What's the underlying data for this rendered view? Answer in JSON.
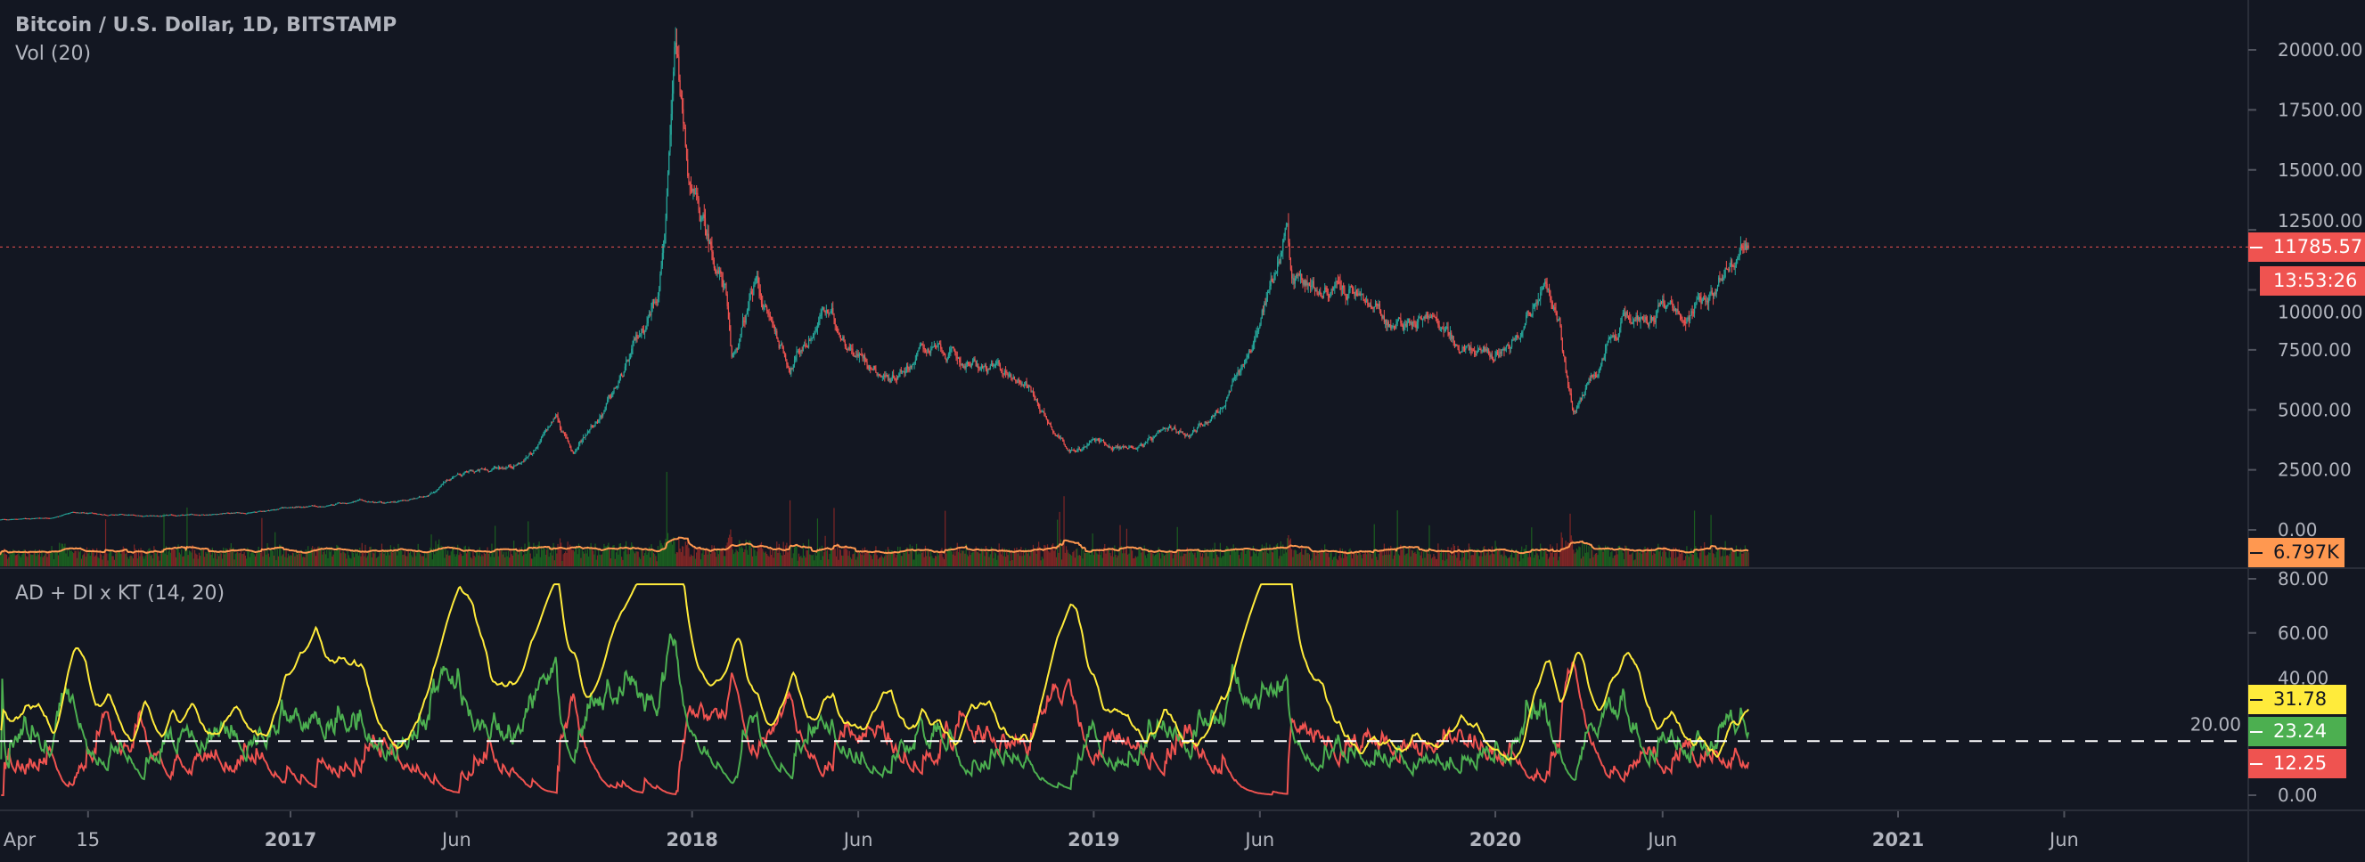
{
  "header": {
    "title": "Bitcoin / U.S. Dollar, 1D, BITSTAMP",
    "volume_label": "Vol (20)",
    "indicator_label": "AD + DI x KT (14, 20)"
  },
  "colors": {
    "background": "#131722",
    "up": "#26a69a",
    "down": "#ef5350",
    "volume_up": "#1b5e20",
    "volume_down": "#7f2626",
    "volume_ma": "#ff9850",
    "adx": "#ffeb3b",
    "di_plus": "#4caf50",
    "di_minus": "#ef5350",
    "axis_text": "#b2b5be",
    "separator": "#2a2e39"
  },
  "price_tags": {
    "last_price": "11785.57",
    "countdown": "13:53:26",
    "volume": "6.797K",
    "adx": "31.78",
    "di_plus": "23.24",
    "di_minus": "12.25"
  },
  "chart_data": [
    {
      "type": "candlestick",
      "pane": "price",
      "ylim": [
        0,
        20000
      ],
      "y_ticks": [
        "20000.00",
        "17500.00",
        "15000.00",
        "12500.00",
        "10000.00",
        "7500.00",
        "5000.00",
        "2500.00",
        "0.00"
      ],
      "y_tick_values": [
        20000,
        17500,
        15000,
        12500,
        10000,
        7500,
        5000,
        2500,
        0
      ],
      "x_range": [
        "2016-04-12",
        "2021-12-31"
      ],
      "x_ticks": [
        {
          "label": "Apr",
          "date": "2016-04-01"
        },
        {
          "label": "15",
          "date": "2016-07-01"
        },
        {
          "label": "2017",
          "date": "2017-01-01"
        },
        {
          "label": "Jun",
          "date": "2017-06-01"
        },
        {
          "label": "2018",
          "date": "2018-01-01"
        },
        {
          "label": "Jun",
          "date": "2018-06-01"
        },
        {
          "label": "2019",
          "date": "2019-01-01"
        },
        {
          "label": "Jun",
          "date": "2019-06-01"
        },
        {
          "label": "2020",
          "date": "2020-01-01"
        },
        {
          "label": "Jun",
          "date": "2020-06-01"
        },
        {
          "label": "2021",
          "date": "2021-01-01"
        },
        {
          "label": "Jun",
          "date": "2021-06-01"
        }
      ],
      "approx_close": [
        [
          "2016-04-12",
          425
        ],
        [
          "2016-05-31",
          530
        ],
        [
          "2016-06-18",
          760
        ],
        [
          "2016-06-30",
          670
        ],
        [
          "2016-07-31",
          620
        ],
        [
          "2016-08-31",
          575
        ],
        [
          "2016-09-30",
          608
        ],
        [
          "2016-10-31",
          700
        ],
        [
          "2016-11-30",
          740
        ],
        [
          "2016-12-31",
          960
        ],
        [
          "2017-01-31",
          965
        ],
        [
          "2017-02-28",
          1190
        ],
        [
          "2017-03-31",
          1080
        ],
        [
          "2017-04-30",
          1350
        ],
        [
          "2017-05-31",
          2300
        ],
        [
          "2017-06-30",
          2480
        ],
        [
          "2017-07-31",
          2870
        ],
        [
          "2017-08-31",
          4700
        ],
        [
          "2017-09-15",
          3200
        ],
        [
          "2017-09-30",
          4340
        ],
        [
          "2017-10-31",
          6450
        ],
        [
          "2017-11-30",
          10000
        ],
        [
          "2017-12-17",
          19600
        ],
        [
          "2017-12-31",
          13800
        ],
        [
          "2018-01-31",
          10200
        ],
        [
          "2018-02-06",
          6900
        ],
        [
          "2018-02-28",
          10300
        ],
        [
          "2018-03-31",
          6900
        ],
        [
          "2018-04-30",
          9200
        ],
        [
          "2018-05-31",
          7500
        ],
        [
          "2018-06-30",
          6400
        ],
        [
          "2018-07-31",
          7700
        ],
        [
          "2018-08-31",
          7000
        ],
        [
          "2018-09-30",
          6600
        ],
        [
          "2018-10-31",
          6300
        ],
        [
          "2018-11-30",
          4000
        ],
        [
          "2018-12-15",
          3250
        ],
        [
          "2018-12-31",
          3700
        ],
        [
          "2019-01-31",
          3450
        ],
        [
          "2019-02-28",
          3800
        ],
        [
          "2019-03-31",
          4100
        ],
        [
          "2019-04-30",
          5300
        ],
        [
          "2019-05-31",
          8550
        ],
        [
          "2019-06-26",
          12900
        ],
        [
          "2019-06-30",
          10800
        ],
        [
          "2019-07-31",
          10000
        ],
        [
          "2019-08-31",
          9600
        ],
        [
          "2019-09-30",
          8300
        ],
        [
          "2019-10-31",
          9150
        ],
        [
          "2019-11-30",
          7550
        ],
        [
          "2019-12-31",
          7200
        ],
        [
          "2020-01-31",
          9350
        ],
        [
          "2020-02-12",
          10300
        ],
        [
          "2020-02-29",
          8550
        ],
        [
          "2020-03-12",
          4800
        ],
        [
          "2020-03-31",
          6400
        ],
        [
          "2020-04-30",
          8650
        ],
        [
          "2020-05-31",
          9450
        ],
        [
          "2020-06-30",
          9150
        ],
        [
          "2020-07-31",
          11350
        ],
        [
          "2020-08-18",
          11785.57
        ]
      ],
      "last_price": 11785.57
    },
    {
      "type": "bar",
      "pane": "volume",
      "series": [
        {
          "name": "Vol (20)",
          "last_value": "6.797K"
        }
      ]
    },
    {
      "type": "line",
      "pane": "indicator",
      "ylim": [
        0,
        80
      ],
      "y_ticks": [
        "80.00",
        "60.00",
        "40.00",
        "20.00",
        "0.00"
      ],
      "y_tick_values": [
        80,
        60,
        40,
        20,
        0
      ],
      "threshold": 20,
      "period": 14,
      "smoothing": 20,
      "series": [
        {
          "key": "adx",
          "last_value": 31.78
        },
        {
          "key": "di_plus",
          "last_value": 23.24
        },
        {
          "key": "di_minus",
          "last_value": 12.25
        }
      ]
    }
  ]
}
